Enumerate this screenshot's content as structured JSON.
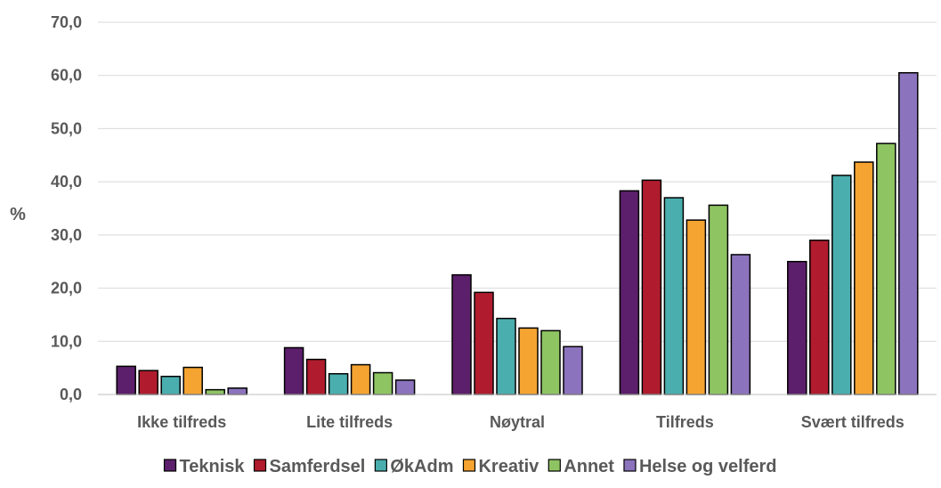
{
  "chart_data": {
    "type": "bar",
    "title": "",
    "xlabel": "",
    "ylabel": "%",
    "ylim": [
      0,
      70
    ],
    "yticks": [
      "0,0",
      "10,0",
      "20,0",
      "30,0",
      "40,0",
      "50,0",
      "60,0",
      "70,0"
    ],
    "grid": true,
    "legend_position": "bottom",
    "categories": [
      "Ikke tilfreds",
      "Lite tilfreds",
      "Nøytral",
      "Tilfreds",
      "Svært tilfreds"
    ],
    "series": [
      {
        "name": "Teknisk",
        "color": "#5c1f6b",
        "values": [
          5.3,
          8.8,
          22.5,
          38.3,
          25.0
        ]
      },
      {
        "name": "Samferdsel",
        "color": "#b01c2e",
        "values": [
          4.5,
          6.6,
          19.2,
          40.3,
          29.0
        ]
      },
      {
        "name": "ØkAdm",
        "color": "#4aaeae",
        "values": [
          3.4,
          3.9,
          14.3,
          37.0,
          41.2
        ]
      },
      {
        "name": "Kreativ",
        "color": "#f5a431",
        "values": [
          5.1,
          5.6,
          12.5,
          32.8,
          43.7
        ]
      },
      {
        "name": "Annet",
        "color": "#8ec462",
        "values": [
          0.9,
          4.1,
          12.0,
          35.6,
          47.2
        ]
      },
      {
        "name": "Helse og velferd",
        "color": "#8c73bd",
        "values": [
          1.2,
          2.7,
          9.0,
          26.3,
          60.5
        ]
      }
    ]
  }
}
